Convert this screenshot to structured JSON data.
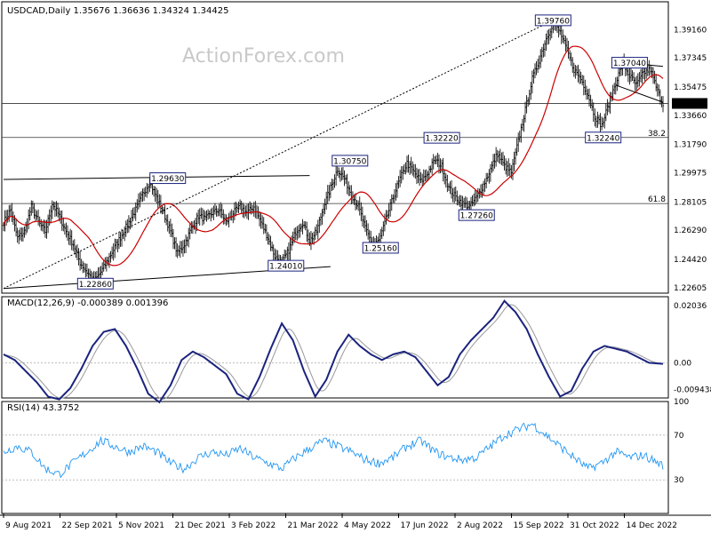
{
  "chart_data": [
    {
      "type": "candlestick",
      "header": "USDCAD,Daily  1.35676 1.36636 1.34324 1.34425",
      "watermark": "ActionForex.com",
      "y_ticks": [
        1.3916,
        1.37345,
        1.35475,
        1.3366,
        1.3179,
        1.29975,
        1.28105,
        1.2629,
        1.2442,
        1.22605
      ],
      "y_tick_labels": [
        "1.39160",
        "1.37345",
        "1.35475",
        "1.33660",
        "1.31790",
        "1.29975",
        "1.28105",
        "1.26290",
        "1.24420",
        "1.22605"
      ],
      "ylim": [
        1.2225,
        1.4095
      ],
      "last_price": "1.34425",
      "last_price_value": 1.34425,
      "x_tick_labels": [
        "9 Aug 2021",
        "22 Sep 2021",
        "5 Nov 2021",
        "21 Dec 2021",
        "3 Feb 2022",
        "21 Mar 2022",
        "4 May 2022",
        "17 Jun 2022",
        "2 Aug 2022",
        "15 Sep 2022",
        "31 Oct 2022",
        "14 Dec 2022"
      ],
      "anchor_points": [
        [
          0,
          1.268
        ],
        [
          5,
          1.276
        ],
        [
          10,
          1.258
        ],
        [
          15,
          1.262
        ],
        [
          20,
          1.278
        ],
        [
          25,
          1.268
        ],
        [
          30,
          1.262
        ],
        [
          35,
          1.28
        ],
        [
          40,
          1.272
        ],
        [
          45,
          1.262
        ],
        [
          50,
          1.254
        ],
        [
          55,
          1.242
        ],
        [
          60,
          1.236
        ],
        [
          65,
          1.23
        ],
        [
          70,
          1.236
        ],
        [
          75,
          1.244
        ],
        [
          80,
          1.252
        ],
        [
          85,
          1.26
        ],
        [
          90,
          1.268
        ],
        [
          95,
          1.276
        ],
        [
          100,
          1.286
        ],
        [
          105,
          1.294
        ],
        [
          110,
          1.284
        ],
        [
          115,
          1.274
        ],
        [
          120,
          1.262
        ],
        [
          125,
          1.248
        ],
        [
          130,
          1.254
        ],
        [
          135,
          1.264
        ],
        [
          140,
          1.272
        ],
        [
          145,
          1.27
        ],
        [
          150,
          1.274
        ],
        [
          155,
          1.276
        ],
        [
          160,
          1.268
        ],
        [
          165,
          1.274
        ],
        [
          170,
          1.278
        ],
        [
          175,
          1.274
        ],
        [
          180,
          1.278
        ],
        [
          185,
          1.268
        ],
        [
          190,
          1.258
        ],
        [
          195,
          1.246
        ],
        [
          200,
          1.242
        ],
        [
          205,
          1.25
        ],
        [
          210,
          1.262
        ],
        [
          215,
          1.268
        ],
        [
          220,
          1.256
        ],
        [
          225,
          1.262
        ],
        [
          230,
          1.278
        ],
        [
          235,
          1.29
        ],
        [
          240,
          1.302
        ],
        [
          245,
          1.296
        ],
        [
          250,
          1.286
        ],
        [
          255,
          1.278
        ],
        [
          260,
          1.264
        ],
        [
          265,
          1.254
        ],
        [
          270,
          1.256
        ],
        [
          275,
          1.27
        ],
        [
          280,
          1.284
        ],
        [
          285,
          1.296
        ],
        [
          290,
          1.306
        ],
        [
          295,
          1.3
        ],
        [
          300,
          1.294
        ],
        [
          305,
          1.3
        ],
        [
          310,
          1.308
        ],
        [
          315,
          1.304
        ],
        [
          320,
          1.29
        ],
        [
          325,
          1.284
        ],
        [
          330,
          1.28
        ],
        [
          335,
          1.278
        ],
        [
          340,
          1.284
        ],
        [
          345,
          1.292
        ],
        [
          350,
          1.302
        ],
        [
          355,
          1.312
        ],
        [
          360,
          1.304
        ],
        [
          365,
          1.3
        ],
        [
          370,
          1.32
        ],
        [
          375,
          1.34
        ],
        [
          380,
          1.36
        ],
        [
          385,
          1.372
        ],
        [
          390,
          1.386
        ],
        [
          395,
          1.396
        ],
        [
          400,
          1.39
        ],
        [
          405,
          1.378
        ],
        [
          410,
          1.366
        ],
        [
          415,
          1.36
        ],
        [
          420,
          1.35
        ],
        [
          425,
          1.336
        ],
        [
          430,
          1.33
        ],
        [
          435,
          1.344
        ],
        [
          440,
          1.358
        ],
        [
          445,
          1.37
        ],
        [
          450,
          1.362
        ],
        [
          455,
          1.356
        ],
        [
          460,
          1.364
        ],
        [
          465,
          1.366
        ],
        [
          470,
          1.352
        ],
        [
          474,
          1.344
        ]
      ],
      "moving_average": "red",
      "horizontal_lines": [
        {
          "value": 1.3224,
          "label": "38.2"
        },
        {
          "value": 1.28,
          "label": "61.8"
        },
        {
          "value": 1.34425,
          "label": ""
        }
      ],
      "price_labels": [
        {
          "value": 1.3976,
          "text": "1.39760",
          "bar": 395
        },
        {
          "value": 1.3704,
          "text": "1.37040",
          "bar": 450
        },
        {
          "value": 1.3224,
          "text": "1.32240",
          "bar": 431
        },
        {
          "value": 1.3222,
          "text": "1.32220",
          "bar": 315
        },
        {
          "value": 1.3075,
          "text": "1.30750",
          "bar": 249
        },
        {
          "value": 1.2963,
          "text": "1.29630",
          "bar": 118
        },
        {
          "value": 1.2726,
          "text": "1.27260",
          "bar": 340
        },
        {
          "value": 1.2516,
          "text": "1.25160",
          "bar": 271
        },
        {
          "value": 1.2401,
          "text": "1.24010",
          "bar": 203
        },
        {
          "value": 1.2286,
          "text": "1.22860",
          "bar": 66
        }
      ]
    },
    {
      "type": "line",
      "header": "MACD(12,26,9) -0.000389 0.001396",
      "y_tick_labels": [
        "0.02036",
        "0.00",
        "-0.009438"
      ],
      "y_ticks": [
        0.02036,
        0.0,
        -0.009438
      ],
      "ylim": [
        -0.0125,
        0.0235
      ],
      "series": [
        {
          "values_points": [
            [
              0,
              0.003
            ],
            [
              8,
              0.001
            ],
            [
              16,
              -0.003
            ],
            [
              24,
              -0.007
            ],
            [
              32,
              -0.012
            ],
            [
              40,
              -0.013
            ],
            [
              48,
              -0.009
            ],
            [
              56,
              -0.002
            ],
            [
              64,
              0.006
            ],
            [
              72,
              0.011
            ],
            [
              80,
              0.012
            ],
            [
              88,
              0.006
            ],
            [
              96,
              -0.002
            ],
            [
              104,
              -0.011
            ],
            [
              112,
              -0.014
            ],
            [
              120,
              -0.008
            ],
            [
              128,
              0.001
            ],
            [
              136,
              0.004
            ],
            [
              144,
              0.002
            ],
            [
              152,
              -0.001
            ],
            [
              160,
              -0.004
            ],
            [
              168,
              -0.011
            ],
            [
              176,
              -0.013
            ],
            [
              184,
              -0.005
            ],
            [
              192,
              0.005
            ],
            [
              200,
              0.014
            ],
            [
              208,
              0.008
            ],
            [
              216,
              -0.003
            ],
            [
              224,
              -0.012
            ],
            [
              232,
              -0.006
            ],
            [
              240,
              0.004
            ],
            [
              248,
              0.01
            ],
            [
              256,
              0.006
            ],
            [
              264,
              0.003
            ],
            [
              272,
              0.001
            ],
            [
              280,
              0.003
            ],
            [
              288,
              0.004
            ],
            [
              296,
              0.002
            ],
            [
              304,
              -0.003
            ],
            [
              312,
              -0.008
            ],
            [
              320,
              -0.005
            ],
            [
              328,
              0.003
            ],
            [
              336,
              0.008
            ],
            [
              344,
              0.012
            ],
            [
              352,
              0.016
            ],
            [
              360,
              0.022
            ],
            [
              368,
              0.018
            ],
            [
              376,
              0.012
            ],
            [
              384,
              0.003
            ],
            [
              392,
              -0.005
            ],
            [
              400,
              -0.012
            ],
            [
              408,
              -0.01
            ],
            [
              416,
              -0.002
            ],
            [
              424,
              0.004
            ],
            [
              432,
              0.006
            ],
            [
              440,
              0.005
            ],
            [
              448,
              0.004
            ],
            [
              456,
              0.002
            ],
            [
              464,
              0.0
            ],
            [
              474,
              -0.0004
            ]
          ]
        }
      ]
    },
    {
      "type": "line",
      "header": "RSI(14) 43.3752",
      "y_tick_labels": [
        "100",
        "70",
        "30"
      ],
      "y_ticks": [
        100,
        70,
        30
      ],
      "ylim": [
        0,
        100
      ],
      "series": [
        {
          "values_points": [
            [
              0,
              55
            ],
            [
              10,
              60
            ],
            [
              20,
              55
            ],
            [
              30,
              40
            ],
            [
              40,
              35
            ],
            [
              50,
              45
            ],
            [
              60,
              55
            ],
            [
              70,
              65
            ],
            [
              80,
              60
            ],
            [
              90,
              55
            ],
            [
              100,
              60
            ],
            [
              110,
              55
            ],
            [
              120,
              45
            ],
            [
              130,
              40
            ],
            [
              140,
              50
            ],
            [
              150,
              55
            ],
            [
              160,
              52
            ],
            [
              170,
              58
            ],
            [
              180,
              50
            ],
            [
              190,
              45
            ],
            [
              200,
              40
            ],
            [
              210,
              50
            ],
            [
              220,
              58
            ],
            [
              230,
              65
            ],
            [
              240,
              60
            ],
            [
              250,
              55
            ],
            [
              260,
              48
            ],
            [
              270,
              45
            ],
            [
              280,
              50
            ],
            [
              290,
              60
            ],
            [
              300,
              65
            ],
            [
              310,
              55
            ],
            [
              320,
              50
            ],
            [
              330,
              48
            ],
            [
              340,
              50
            ],
            [
              350,
              60
            ],
            [
              360,
              70
            ],
            [
              370,
              75
            ],
            [
              380,
              80
            ],
            [
              390,
              70
            ],
            [
              400,
              60
            ],
            [
              410,
              50
            ],
            [
              420,
              40
            ],
            [
              430,
              45
            ],
            [
              440,
              55
            ],
            [
              450,
              50
            ],
            [
              460,
              52
            ],
            [
              474,
              43
            ]
          ]
        }
      ]
    }
  ]
}
